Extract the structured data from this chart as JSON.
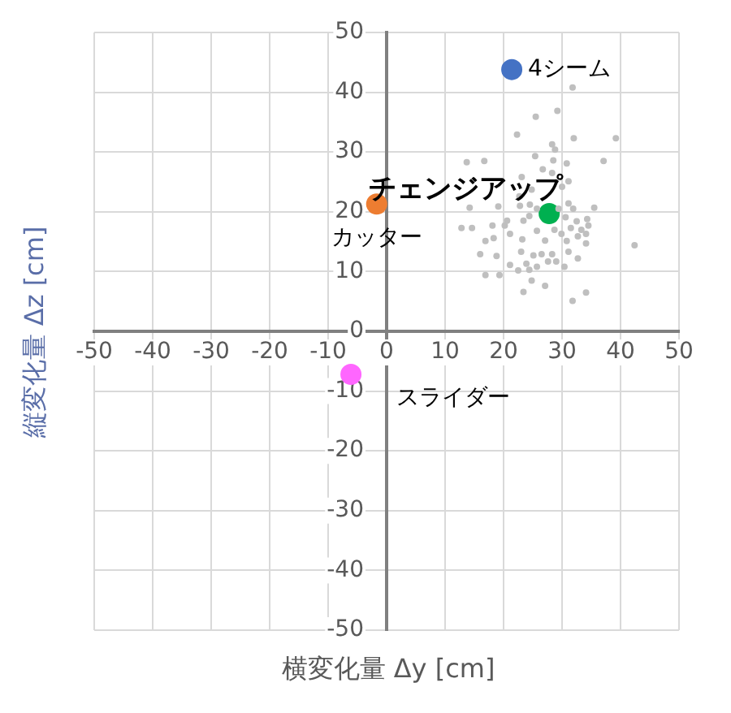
{
  "chart_data": {
    "type": "scatter",
    "xlabel": "横変化量 Δy [cm]",
    "ylabel": "縦変化量 Δz [cm]",
    "xlim": [
      -50,
      50
    ],
    "ylim": [
      -50,
      50
    ],
    "xticks": [
      -50,
      -40,
      -30,
      -20,
      -10,
      0,
      10,
      20,
      30,
      40,
      50
    ],
    "yticks": [
      -50,
      -40,
      -30,
      -20,
      -10,
      0,
      10,
      20,
      30,
      40,
      50
    ],
    "grid": true,
    "legend": false,
    "marker": "circle",
    "series": [
      {
        "color": "#bfbfbf",
        "x": [
          31.8,
          29.2,
          25.5,
          32.0,
          39.2,
          22.3,
          28.3,
          28.8,
          25.4,
          28.5,
          13.7,
          16.7,
          37.1,
          30.8,
          26.7,
          28.3,
          23.1,
          31.1,
          30.0,
          24.8,
          22.7,
          24.5,
          14.2,
          19.1,
          22.8,
          31.1,
          31.9,
          35.5,
          24.4,
          20.6,
          32.5,
          34.3,
          30.6,
          18.1,
          14.6,
          23.4,
          28.7,
          31.5,
          33.3,
          34.5,
          21.1,
          25.7,
          29.9,
          32.7,
          34.1,
          18.3,
          16.9,
          23.2,
          27.1,
          30.8,
          42.4,
          16.0,
          18.8,
          23.0,
          25.1,
          26.5,
          28.3,
          31.1,
          32.7,
          21.1,
          23.9,
          25.7,
          27.6,
          29.0,
          30.4,
          16.9,
          19.3,
          22.5,
          24.4,
          24.8,
          27.1,
          23.4,
          34.1,
          31.8,
          12.8,
          34.1,
          29.4,
          25.7,
          20.2
        ],
        "values": [
          40.8,
          36.9,
          35.9,
          32.3,
          32.3,
          32.9,
          31.3,
          30.4,
          29.3,
          28.6,
          28.3,
          28.5,
          28.5,
          28.1,
          27.1,
          26.5,
          25.8,
          25.1,
          24.2,
          23.7,
          22.6,
          21.2,
          20.7,
          20.9,
          21.0,
          21.4,
          20.5,
          20.7,
          19.3,
          18.5,
          18.4,
          18.8,
          19.1,
          17.7,
          17.3,
          18.5,
          17.0,
          17.3,
          17.0,
          17.7,
          16.3,
          16.8,
          16.3,
          15.9,
          16.3,
          15.6,
          15.1,
          15.4,
          15.2,
          15.1,
          14.4,
          12.9,
          12.6,
          13.3,
          12.7,
          12.9,
          12.9,
          13.3,
          12.2,
          11.1,
          11.3,
          10.8,
          11.7,
          11.7,
          10.8,
          9.4,
          9.4,
          10.2,
          10.3,
          8.5,
          7.6,
          6.6,
          6.5,
          5.1,
          17.3,
          14.7,
          20.5,
          20.5,
          17.7
        ]
      },
      {
        "name": "4シーム",
        "color": "#4472c4",
        "x": [
          21.4
        ],
        "values": [
          43.8
        ]
      },
      {
        "name": "カッター",
        "color": "#ed7d31",
        "x": [
          -1.7
        ],
        "values": [
          21.3
        ]
      },
      {
        "name": "チェンジアップ",
        "color": "#00b050",
        "x": [
          27.8
        ],
        "values": [
          19.7
        ]
      },
      {
        "name": "スライダー",
        "color": "#ff66ff",
        "x": [
          -6.1
        ],
        "values": [
          -7.2
        ]
      }
    ]
  }
}
